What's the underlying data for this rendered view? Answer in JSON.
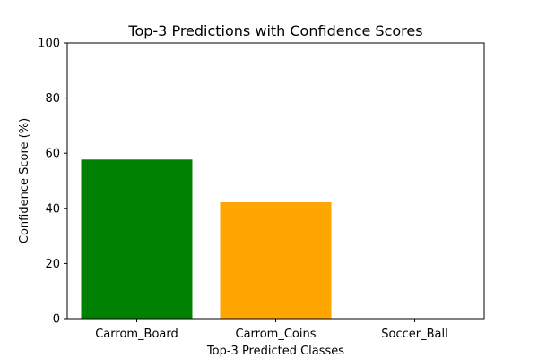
{
  "chart_data": {
    "type": "bar",
    "title": "Top-3 Predictions with Confidence Scores",
    "xlabel": "Top-3 Predicted Classes",
    "ylabel": "Confidence Score (%)",
    "categories": [
      "Carrom_Board",
      "Carrom_Coins",
      "Soccer_Ball"
    ],
    "values": [
      57.7,
      42.2,
      0.1
    ],
    "colors": [
      "#008000",
      "#ffa500",
      "#ff0000"
    ],
    "ylim": [
      0,
      100
    ],
    "yticks": [
      0,
      20,
      40,
      60,
      80,
      100
    ],
    "grid": false,
    "legend": "none"
  }
}
